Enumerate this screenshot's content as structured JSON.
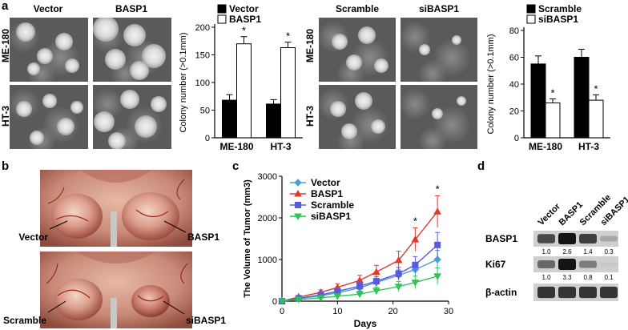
{
  "panels": {
    "a": {
      "label": "a",
      "left": {
        "columns": [
          "Vector",
          "BASP1"
        ],
        "rows": [
          "ME-180",
          "HT-3"
        ]
      },
      "right": {
        "columns": [
          "Scramble",
          "siBASP1"
        ],
        "rows": [
          "ME-180",
          "HT-3"
        ]
      }
    },
    "b": {
      "label": "b",
      "top_left": "Vector",
      "top_right": "BASP1",
      "bottom_left": "Scramble",
      "bottom_right": "siBASP1"
    },
    "c": {
      "label": "c"
    },
    "d": {
      "label": "d",
      "lanes": [
        "Vector",
        "BASP1",
        "Scramble",
        "siBASP1"
      ],
      "blots": [
        {
          "name": "BASP1",
          "values": [
            "1.0",
            "2.6",
            "1.4",
            "0.3"
          ],
          "intensity": [
            0.75,
            1.0,
            0.8,
            0.3
          ]
        },
        {
          "name": "Ki67",
          "values": [
            "1.0",
            "3.3",
            "0.8",
            "0.1"
          ],
          "intensity": [
            0.6,
            1.0,
            0.5,
            0.15
          ]
        },
        {
          "name": "β-actin",
          "values": [],
          "intensity": [
            0.85,
            0.85,
            0.85,
            0.85
          ]
        }
      ]
    }
  },
  "chart_data": [
    {
      "type": "bar",
      "categories": [
        "ME-180",
        "HT-3"
      ],
      "series": [
        {
          "name": "Vector",
          "values": [
            68,
            61
          ],
          "errors": [
            10,
            8
          ],
          "color": "#000000"
        },
        {
          "name": "BASP1",
          "values": [
            170,
            163
          ],
          "errors": [
            13,
            10
          ],
          "color": "#ffffff"
        }
      ],
      "ylabel": "Colony number (>0.1mm)",
      "ylim": [
        0,
        200
      ],
      "yticks": [
        "0",
        "50",
        "100",
        "150",
        "200"
      ],
      "significance": [
        "*",
        "*"
      ],
      "legend": "top"
    },
    {
      "type": "bar",
      "categories": [
        "ME-180",
        "HT-3"
      ],
      "series": [
        {
          "name": "Scramble",
          "values": [
            55,
            60
          ],
          "errors": [
            6,
            6
          ],
          "color": "#000000"
        },
        {
          "name": "siBASP1",
          "values": [
            26,
            28
          ],
          "errors": [
            3,
            4
          ],
          "color": "#ffffff"
        }
      ],
      "ylabel": "Colony number (>0.1mm)",
      "ylim": [
        0,
        80
      ],
      "yticks": [
        "0",
        "20",
        "40",
        "60",
        "80"
      ],
      "significance": [
        "*",
        "*"
      ],
      "legend": "top"
    },
    {
      "type": "line",
      "x": [
        0,
        3,
        7,
        10,
        14,
        17,
        21,
        24,
        28
      ],
      "series": [
        {
          "name": "Vector",
          "values": [
            0,
            60,
            130,
            200,
            320,
            450,
            620,
            760,
            1000
          ],
          "errors": [
            0,
            20,
            40,
            60,
            80,
            100,
            130,
            160,
            220
          ],
          "color": "#4a9fd4",
          "marker": "diamond"
        },
        {
          "name": "BASP1",
          "values": [
            0,
            100,
            210,
            330,
            500,
            700,
            980,
            1480,
            2150
          ],
          "errors": [
            0,
            30,
            60,
            90,
            120,
            160,
            220,
            280,
            380
          ],
          "color": "#e03a2e",
          "marker": "triangle-up"
        },
        {
          "name": "Scramble",
          "values": [
            0,
            70,
            150,
            240,
            360,
            480,
            660,
            870,
            1350
          ],
          "errors": [
            0,
            20,
            40,
            60,
            90,
            110,
            150,
            200,
            300
          ],
          "color": "#5a5ae0",
          "marker": "square"
        },
        {
          "name": "siBASP1",
          "values": [
            0,
            40,
            80,
            120,
            170,
            250,
            350,
            450,
            600
          ],
          "errors": [
            0,
            15,
            30,
            50,
            70,
            90,
            120,
            150,
            200
          ],
          "color": "#2ec454",
          "marker": "triangle-down"
        }
      ],
      "xlabel": "Days",
      "ylabel": "The Volume of Tumor (mm3)",
      "xlim": [
        0,
        30
      ],
      "ylim": [
        0,
        3000
      ],
      "xticks": [
        "0",
        "10",
        "20",
        "30"
      ],
      "yticks": [
        "0",
        "1000",
        "2000",
        "3000"
      ],
      "significance": [
        {
          "x": 24,
          "label": "*"
        },
        {
          "x": 28,
          "label": "*"
        }
      ],
      "legend": "top-left"
    }
  ]
}
